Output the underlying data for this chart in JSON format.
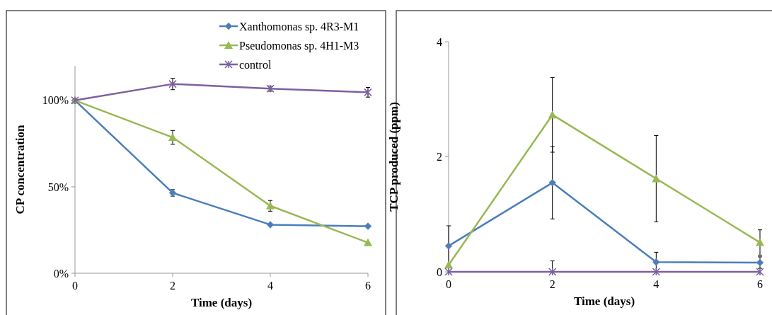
{
  "chart_data": [
    {
      "type": "line",
      "xlabel": "Time (days)",
      "ylabel": "CP concentration",
      "x": [
        0,
        2,
        4,
        6
      ],
      "xlim": [
        0,
        6
      ],
      "xticks": [
        0,
        2,
        4,
        6
      ],
      "ylim": [
        0,
        120
      ],
      "yticks": [
        {
          "value": 0,
          "label": "0%"
        },
        {
          "value": 50,
          "label": "50%"
        },
        {
          "value": 100,
          "label": "100%"
        }
      ],
      "grid": false,
      "legend": "top right",
      "series": [
        {
          "name": "Xanthomonas sp. 4R3-M1",
          "color": "#4a7ebb",
          "marker": "diamond",
          "values": [
            100,
            46.5,
            28.1,
            27.2
          ],
          "errors": [
            null,
            1.9,
            null,
            null
          ]
        },
        {
          "name": "Pseudomonas sp. 4H1-M3",
          "color": "#98b954",
          "marker": "triangle",
          "values": [
            100,
            78.6,
            39,
            17.7
          ],
          "errors": [
            null,
            4,
            3.1,
            null
          ]
        },
        {
          "name": "control",
          "color": "#7d60a0",
          "marker": "cross",
          "values": [
            100,
            109.5,
            106.8,
            104.7
          ],
          "errors": [
            null,
            3.3,
            1.5,
            2.8
          ]
        }
      ]
    },
    {
      "type": "line",
      "xlabel": "Time (days)",
      "ylabel": "TCP produced (ppm)",
      "x": [
        0,
        2,
        4,
        6
      ],
      "xlim": [
        0,
        6
      ],
      "xticks": [
        0,
        2,
        4,
        6
      ],
      "ylim": [
        0,
        4
      ],
      "yticks": [
        0,
        2,
        4
      ],
      "grid": false,
      "series": [
        {
          "color": "#4a7ebb",
          "marker": "diamond",
          "values": [
            0.45,
            1.55,
            0.17,
            0.16
          ],
          "errors": [
            0.35,
            0.63,
            0.17,
            0.1
          ]
        },
        {
          "color": "#98b954",
          "marker": "triangle",
          "values": [
            0.12,
            2.73,
            1.62,
            0.51
          ],
          "errors": [
            null,
            0.65,
            0.75,
            0.22
          ]
        },
        {
          "color": "#7d60a0",
          "marker": "cross",
          "values": [
            0,
            0,
            0,
            0
          ],
          "errors": [
            null,
            0.19,
            null,
            null
          ]
        }
      ]
    }
  ]
}
